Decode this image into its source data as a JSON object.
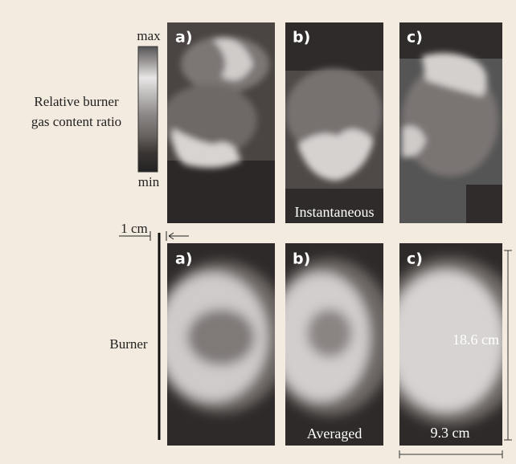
{
  "colorbar": {
    "max": "max",
    "min": "min"
  },
  "quantity_label": [
    "Relative burner",
    "gas content ratio"
  ],
  "instantaneous": {
    "panels": [
      "a)",
      "b)",
      "c)"
    ],
    "caption": "Instantaneous"
  },
  "averaged": {
    "panels": [
      "a)",
      "b)",
      "c)"
    ],
    "caption": "Averaged"
  },
  "scale_bar": "1 cm",
  "burner_label": "Burner",
  "height_label": "18.6 cm",
  "width_label": "9.3 cm"
}
